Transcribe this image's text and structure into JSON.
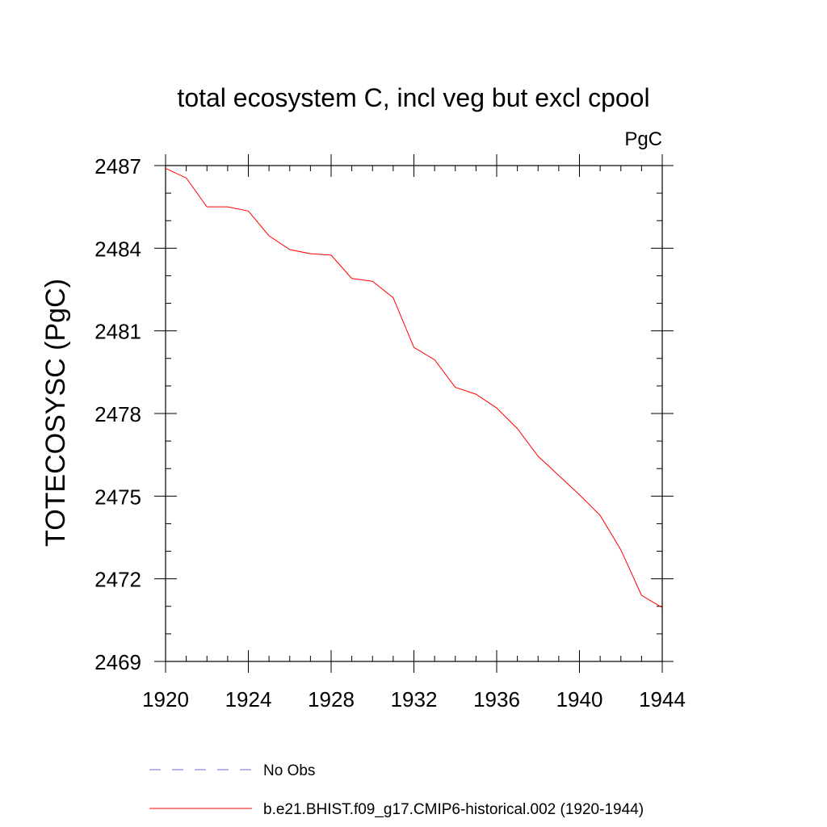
{
  "chart_data": {
    "type": "line",
    "title": "total ecosystem C, incl veg but excl cpool",
    "units_label": "PgC",
    "xlabel": "",
    "ylabel": "TOTECOSYSC  (PgC)",
    "xlim": [
      1920,
      1944
    ],
    "ylim": [
      2469,
      2487
    ],
    "x_ticks": [
      1920,
      1924,
      1928,
      1932,
      1936,
      1940,
      1944
    ],
    "x_tick_labels": [
      "1920",
      "1924",
      "1928",
      "1932",
      "1936",
      "1940",
      "1944"
    ],
    "y_ticks": [
      2469,
      2472,
      2475,
      2478,
      2481,
      2484,
      2487
    ],
    "y_tick_labels": [
      "2469",
      "2472",
      "2475",
      "2478",
      "2481",
      "2484",
      "2487"
    ],
    "grid": false,
    "legend_position": "bottom",
    "series": [
      {
        "name": "b.e21.BHIST.f09_g17.CMIP6-historical.002 (1920-1944)",
        "color": "#ff0000",
        "style": "solid",
        "x": [
          1920,
          1921,
          1922,
          1923,
          1924,
          1925,
          1926,
          1927,
          1928,
          1929,
          1930,
          1931,
          1932,
          1933,
          1934,
          1935,
          1936,
          1937,
          1938,
          1939,
          1940,
          1941,
          1942,
          1943,
          1944
        ],
        "y": [
          2486.9,
          2486.55,
          2485.5,
          2485.5,
          2485.35,
          2484.45,
          2483.95,
          2483.8,
          2483.75,
          2482.9,
          2482.8,
          2482.2,
          2480.4,
          2479.95,
          2478.95,
          2478.7,
          2478.2,
          2477.45,
          2476.45,
          2475.75,
          2475.05,
          2474.3,
          2473.05,
          2471.4,
          2470.95
        ]
      }
    ],
    "legend": [
      {
        "label": "No Obs",
        "color": "#6666cc",
        "style": "dashed"
      },
      {
        "label": "b.e21.BHIST.f09_g17.CMIP6-historical.002 (1920-1944)",
        "color": "#ff0000",
        "style": "solid"
      }
    ]
  }
}
